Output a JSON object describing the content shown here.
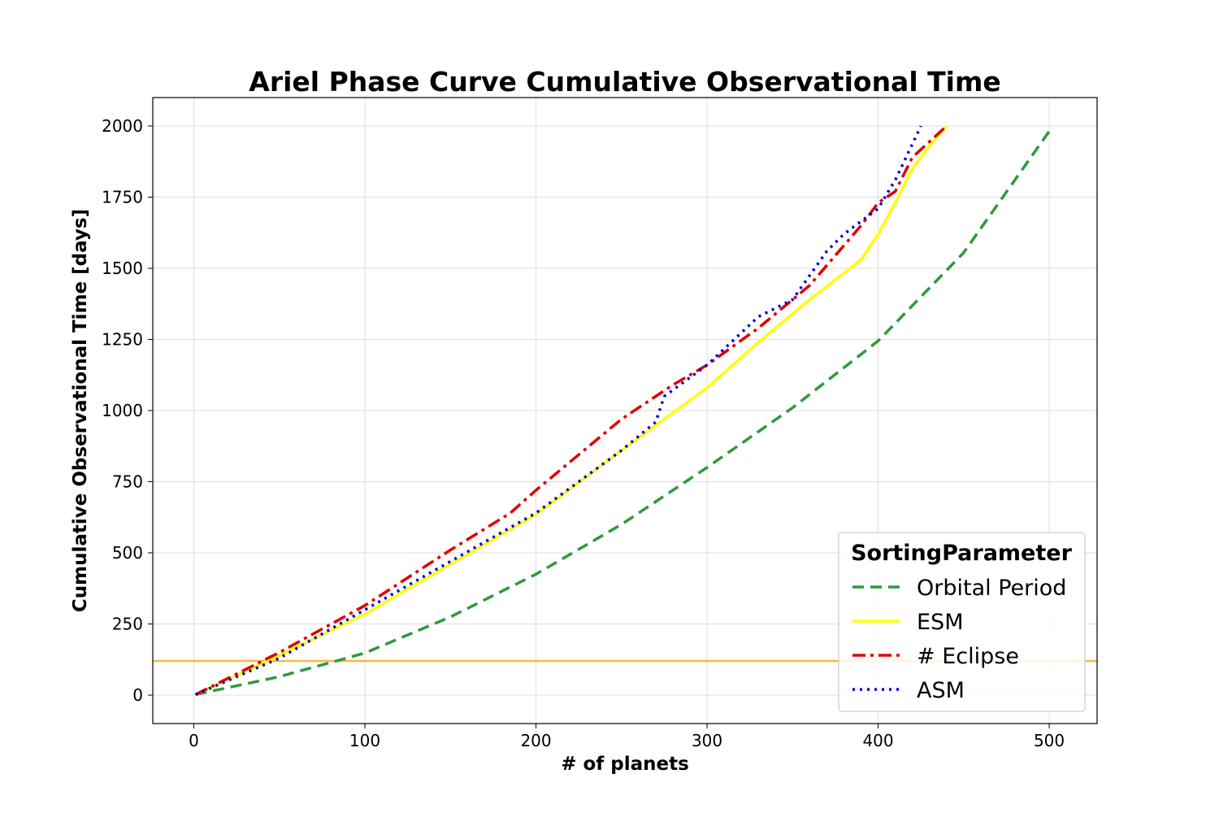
{
  "chart_data": {
    "type": "line",
    "title": "Ariel Phase Curve Cumulative Observational Time",
    "xlabel": "# of planets",
    "ylabel": "Cumulative Observational Time [days]",
    "xlim": [
      -24,
      528
    ],
    "ylim": [
      -100,
      2100
    ],
    "xticks": [
      0,
      100,
      200,
      300,
      400,
      500
    ],
    "yticks": [
      0,
      250,
      500,
      750,
      1000,
      1250,
      1500,
      1750,
      2000
    ],
    "grid": true,
    "legend": {
      "title": "SortingParameter",
      "placement": "lower-right"
    },
    "reference_line": {
      "y": 120,
      "color": "#f5b942"
    },
    "series": [
      {
        "name": "Orbital Period",
        "color": "#2e9a3a",
        "style": "dashed",
        "x": [
          1,
          50,
          100,
          150,
          200,
          250,
          300,
          350,
          400,
          450,
          501
        ],
        "y": [
          2,
          65,
          148,
          275,
          425,
          600,
          800,
          1010,
          1245,
          1555,
          1990
        ]
      },
      {
        "name": "ESM",
        "color": "#ffff00",
        "style": "solid",
        "x": [
          1,
          50,
          100,
          150,
          200,
          250,
          300,
          330,
          360,
          390,
          400,
          410,
          420,
          430,
          440
        ],
        "y": [
          2,
          140,
          285,
          460,
          635,
          860,
          1080,
          1240,
          1390,
          1530,
          1620,
          1730,
          1850,
          1930,
          2000
        ]
      },
      {
        "name": "# Eclipse",
        "color": "#e00000",
        "style": "dashdot",
        "x": [
          1,
          50,
          100,
          150,
          185,
          200,
          250,
          280,
          300,
          330,
          360,
          390,
          400,
          410,
          420,
          440
        ],
        "y": [
          2,
          150,
          315,
          510,
          640,
          720,
          970,
          1090,
          1160,
          1290,
          1440,
          1650,
          1730,
          1770,
          1890,
          2000
        ]
      },
      {
        "name": "ASM",
        "color": "#0000dd",
        "style": "dotted",
        "x": [
          1,
          50,
          100,
          150,
          200,
          250,
          270,
          275,
          300,
          330,
          350,
          370,
          380,
          400,
          410,
          425
        ],
        "y": [
          2,
          130,
          300,
          470,
          640,
          860,
          960,
          1050,
          1160,
          1330,
          1390,
          1560,
          1620,
          1710,
          1810,
          2000
        ]
      }
    ]
  }
}
